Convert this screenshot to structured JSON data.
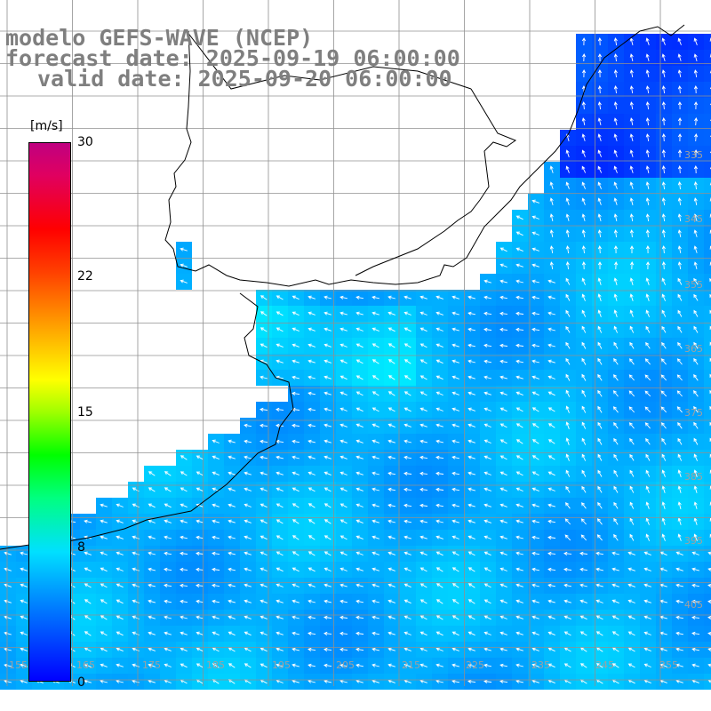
{
  "title": {
    "line1": "modelo GEFS-WAVE (NCEP)",
    "line2": "forecast date: 2025-09-19 06:00:00",
    "line3": "valid date: 2025-09-20 06:00:00"
  },
  "colorbar": {
    "unit": "[m/s]",
    "ticks": [
      "30",
      "22",
      "15",
      "8",
      "0"
    ],
    "tick_values": [
      30,
      22,
      15,
      8,
      0
    ],
    "min": 0,
    "max": 30
  },
  "lat_labels": [
    "335",
    "345",
    "355",
    "365",
    "375",
    "385",
    "395",
    "405"
  ],
  "lon_labels": [
    "155",
    "165",
    "175",
    "185",
    "195",
    "205",
    "215",
    "225",
    "235",
    "245",
    "255"
  ],
  "field": {
    "variable": "wind speed",
    "typical_range": [
      6,
      9
    ],
    "arrow_direction": "northwest / west toward coast"
  }
}
